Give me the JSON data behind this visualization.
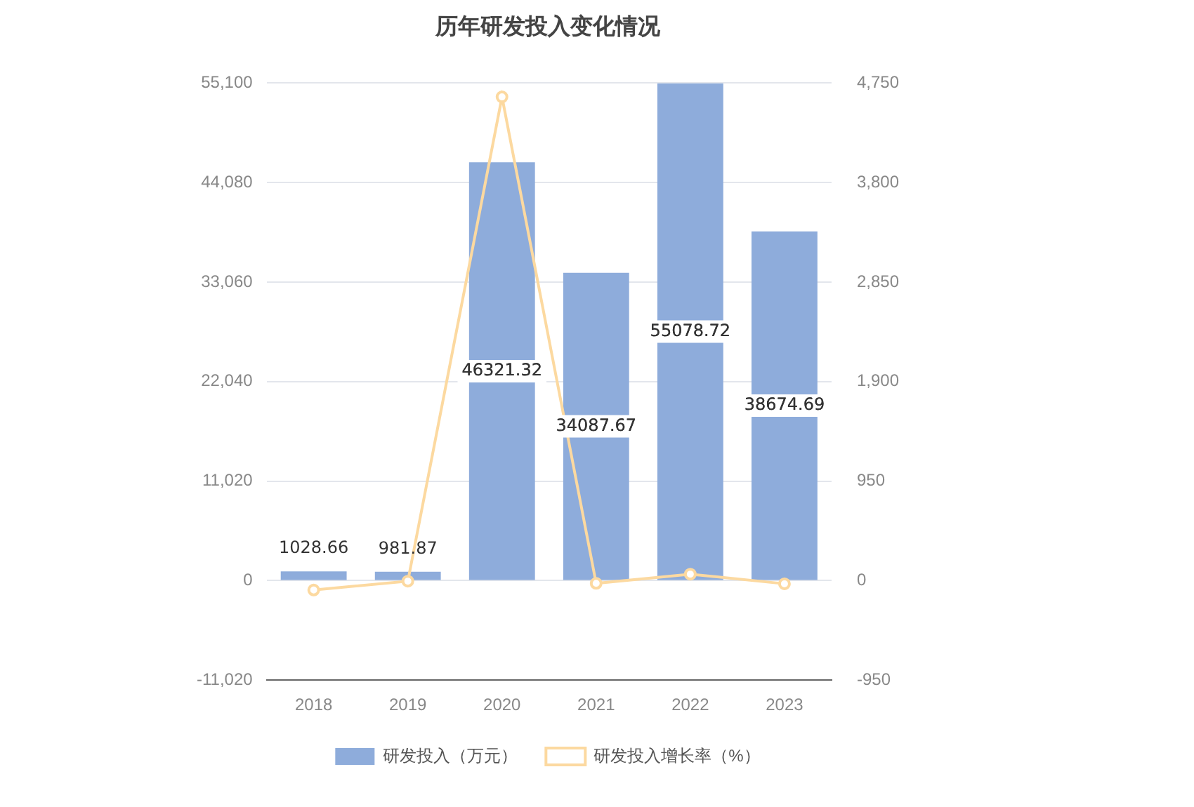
{
  "chart_data": {
    "type": "bar",
    "title": "历年研发投入变化情况",
    "categories": [
      "2018",
      "2019",
      "2020",
      "2021",
      "2022",
      "2023"
    ],
    "series": [
      {
        "name": "研发投入（万元）",
        "color": "#8eacdb",
        "values": [
          1028.66,
          981.87,
          46321.32,
          34087.67,
          55078.72,
          38674.69
        ],
        "value_labels": [
          "1028.66",
          "981.87",
          "46321.32",
          "34087.67",
          "55078.72",
          "38674.69"
        ]
      },
      {
        "name": "研发投入增长率（%）",
        "type": "line",
        "axis": "y2",
        "color": "#fcd9a0",
        "marker": "circle",
        "values": [
          -90,
          -5,
          4618,
          -26,
          62,
          -30
        ]
      }
    ],
    "ylim": [
      -11020,
      55100
    ],
    "yticks": [
      {
        "value": -11020,
        "label": "-11,020"
      },
      {
        "value": 0,
        "label": "0"
      },
      {
        "value": 11020,
        "label": "11,020"
      },
      {
        "value": 22040,
        "label": "22,040"
      },
      {
        "value": 33060,
        "label": "33,060"
      },
      {
        "value": 44080,
        "label": "44,080"
      },
      {
        "value": 55100,
        "label": "55,100"
      }
    ],
    "y2lim": [
      -950,
      4750
    ],
    "y2ticks": [
      {
        "value": -950,
        "label": "-950"
      },
      {
        "value": 0,
        "label": "0"
      },
      {
        "value": 950,
        "label": "950"
      },
      {
        "value": 1900,
        "label": "1,900"
      },
      {
        "value": 2850,
        "label": "2,850"
      },
      {
        "value": 3800,
        "label": "3,800"
      },
      {
        "value": 4750,
        "label": "4,750"
      }
    ],
    "grid": "y",
    "legend": "bottom"
  }
}
